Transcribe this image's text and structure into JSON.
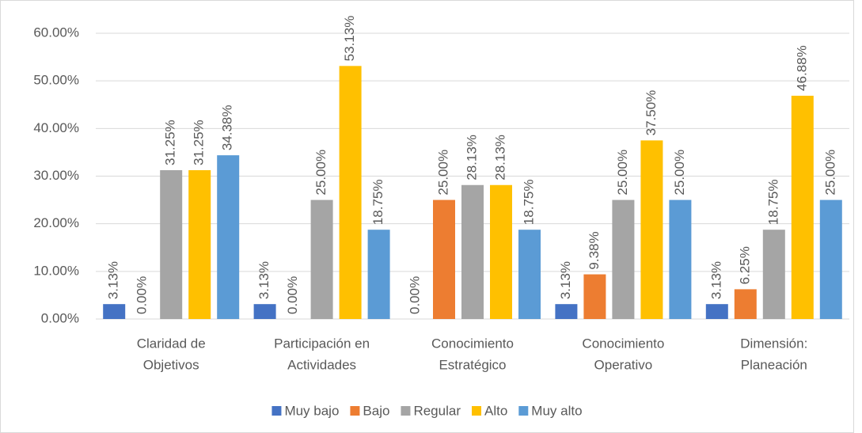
{
  "chart_data": {
    "type": "bar",
    "categories": [
      [
        "Claridad de",
        "Objetivos"
      ],
      [
        "Participación en",
        "Actividades"
      ],
      [
        "Conocimiento",
        "Estratégico"
      ],
      [
        "Conocimiento",
        "Operativo"
      ],
      [
        "Dimensión:",
        "Planeación"
      ]
    ],
    "series": [
      {
        "name": "Muy bajo",
        "color": "#4472c4",
        "values": [
          3.13,
          3.13,
          0.0,
          3.13,
          3.13
        ],
        "value_labels": [
          "3.13%",
          "3.13%",
          "0.00%",
          "3.13%",
          "3.13%"
        ]
      },
      {
        "name": "Bajo",
        "color": "#ed7d31",
        "values": [
          0.0,
          0.0,
          25.0,
          9.38,
          6.25
        ],
        "value_labels": [
          "0.00%",
          "0.00%",
          "25.00%",
          "9.38%",
          "6.25%"
        ]
      },
      {
        "name": "Regular",
        "color": "#a5a5a5",
        "values": [
          31.25,
          25.0,
          28.13,
          25.0,
          18.75
        ],
        "value_labels": [
          "31.25%",
          "25.00%",
          "28.13%",
          "25.00%",
          "18.75%"
        ]
      },
      {
        "name": "Alto",
        "color": "#ffc000",
        "values": [
          31.25,
          53.13,
          28.13,
          37.5,
          46.88
        ],
        "value_labels": [
          "31.25%",
          "53.13%",
          "28.13%",
          "37.50%",
          "46.88%"
        ]
      },
      {
        "name": "Muy alto",
        "color": "#5b9bd5",
        "values": [
          34.38,
          18.75,
          18.75,
          25.0,
          25.0
        ],
        "value_labels": [
          "34.38%",
          "18.75%",
          "18.75%",
          "25.00%",
          "25.00%"
        ]
      }
    ],
    "ylim": [
      0,
      60
    ],
    "yticks": [
      {
        "value": 0,
        "label": "0.00%"
      },
      {
        "value": 10,
        "label": "10.00%"
      },
      {
        "value": 20,
        "label": "20.00%"
      },
      {
        "value": 30,
        "label": "30.00%"
      },
      {
        "value": 40,
        "label": "40.00%"
      },
      {
        "value": 50,
        "label": "50.00%"
      },
      {
        "value": 60,
        "label": "60.00%"
      }
    ],
    "grid": true,
    "legend": "bottom"
  }
}
